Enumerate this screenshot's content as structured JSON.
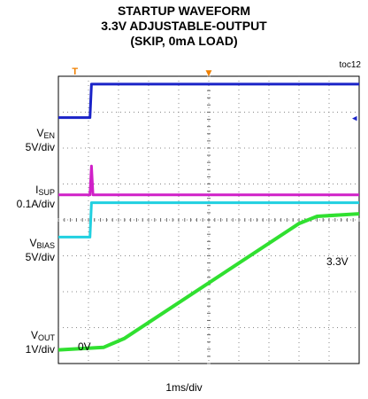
{
  "title_lines": [
    "STARTUP WAVEFORM",
    "3.3V ADJUSTABLE-OUTPUT",
    "(SKIP, 0mA LOAD)"
  ],
  "figure_id": "toc12",
  "chart_data": {
    "type": "line",
    "title": "STARTUP WAVEFORM 3.3V ADJUSTABLE-OUTPUT (SKIP, 0mA LOAD)",
    "xlabel": "1ms/div",
    "xlim_divisions": [
      0,
      10
    ],
    "ylim_divisions": [
      0,
      8
    ],
    "grid": true,
    "channels": [
      {
        "name": "V",
        "sub": "EN",
        "scale": "5V/div",
        "color": "#1a23c8",
        "points": [
          [
            0,
            6.85
          ],
          [
            1.05,
            6.85
          ],
          [
            1.1,
            7.78
          ],
          [
            10,
            7.78
          ]
        ]
      },
      {
        "name": "I",
        "sub": "SUP",
        "scale": "0.1A/div",
        "color": "#d020c8",
        "points": [
          [
            0,
            4.7
          ],
          [
            1.05,
            4.7
          ],
          [
            1.1,
            5.5
          ],
          [
            1.15,
            4.7
          ],
          [
            10,
            4.7
          ]
        ]
      },
      {
        "name": "V",
        "sub": "BIAS",
        "scale": "5V/div",
        "color": "#20d0e0",
        "points": [
          [
            0,
            3.52
          ],
          [
            1.05,
            3.52
          ],
          [
            1.1,
            4.48
          ],
          [
            10,
            4.48
          ]
        ]
      },
      {
        "name": "V",
        "sub": "OUT",
        "scale": "1V/div",
        "color": "#30e030",
        "points": [
          [
            0,
            0.38
          ],
          [
            1.5,
            0.45
          ],
          [
            2.2,
            0.7
          ],
          [
            8.0,
            3.9
          ],
          [
            8.6,
            4.1
          ],
          [
            10,
            4.17
          ]
        ]
      }
    ],
    "annotations": [
      "0V",
      "3.3V"
    ]
  },
  "markers": {
    "trigger": "T",
    "position": "▼",
    "level": "◂"
  }
}
